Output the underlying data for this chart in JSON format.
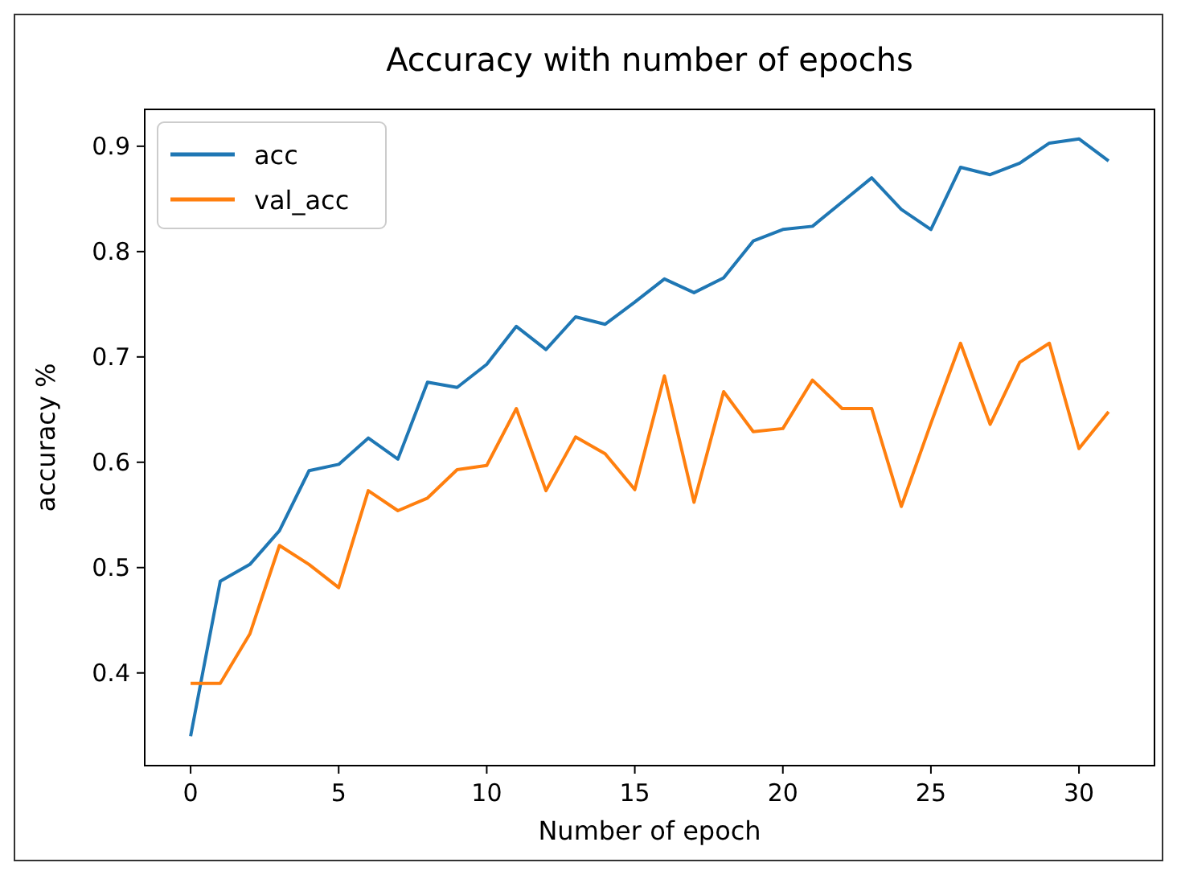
{
  "chart_data": {
    "type": "line",
    "title": "Accuracy with number of epochs",
    "xlabel": "Number of epoch",
    "ylabel": "accuracy %",
    "x": [
      0,
      1,
      2,
      3,
      4,
      5,
      6,
      7,
      8,
      9,
      10,
      11,
      12,
      13,
      14,
      15,
      16,
      17,
      18,
      19,
      20,
      21,
      22,
      23,
      24,
      25,
      26,
      27,
      28,
      29,
      30,
      31
    ],
    "series": [
      {
        "name": "acc",
        "color": "#1f77b4",
        "values": [
          0.34,
          0.487,
          0.503,
          0.535,
          0.592,
          0.598,
          0.623,
          0.603,
          0.676,
          0.671,
          0.693,
          0.729,
          0.707,
          0.738,
          0.731,
          0.752,
          0.774,
          0.761,
          0.775,
          0.81,
          0.821,
          0.824,
          0.847,
          0.87,
          0.84,
          0.821,
          0.88,
          0.873,
          0.884,
          0.903,
          0.907,
          0.886
        ]
      },
      {
        "name": "val_acc",
        "color": "#ff7f0e",
        "values": [
          0.39,
          0.39,
          0.437,
          0.521,
          0.503,
          0.481,
          0.573,
          0.554,
          0.566,
          0.593,
          0.597,
          0.651,
          0.573,
          0.624,
          0.608,
          0.574,
          0.682,
          0.562,
          0.667,
          0.629,
          0.632,
          0.678,
          0.651,
          0.651,
          0.558,
          0.637,
          0.713,
          0.636,
          0.695,
          0.713,
          0.613,
          0.648
        ]
      }
    ],
    "xlim": [
      -1.55,
      32.55
    ],
    "ylim": [
      0.312,
      0.935
    ],
    "xticks": [
      0,
      5,
      10,
      15,
      20,
      25,
      30
    ],
    "yticks": [
      0.4,
      0.5,
      0.6,
      0.7,
      0.8,
      0.9
    ],
    "grid": false,
    "legend": "top left",
    "marker": "none",
    "line_style": "solid"
  }
}
